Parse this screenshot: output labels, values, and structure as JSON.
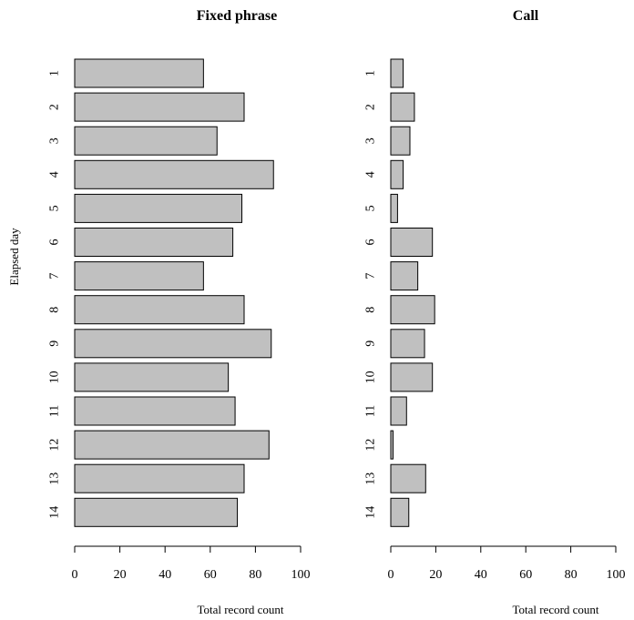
{
  "chart_data": [
    {
      "type": "bar",
      "orientation": "horizontal",
      "title": "Fixed phrase",
      "xlabel": "Total record count",
      "ylabel": "Elapsed day",
      "categories": [
        "1",
        "2",
        "3",
        "4",
        "5",
        "6",
        "7",
        "8",
        "9",
        "10",
        "11",
        "12",
        "13",
        "14"
      ],
      "values": [
        57,
        75,
        63,
        88,
        74,
        70,
        57,
        75,
        87,
        68,
        71,
        86,
        75,
        72
      ],
      "xlim": [
        0,
        100
      ],
      "xticks": [
        "0",
        "20",
        "40",
        "60",
        "80",
        "100"
      ],
      "grid": false,
      "bar_color": "#c0c0c0"
    },
    {
      "type": "bar",
      "orientation": "horizontal",
      "title": "Call",
      "xlabel": "Total record count",
      "ylabel": "",
      "categories": [
        "1",
        "2",
        "3",
        "4",
        "5",
        "6",
        "7",
        "8",
        "9",
        "10",
        "11",
        "12",
        "13",
        "14"
      ],
      "values": [
        5.5,
        10.5,
        8.5,
        5.5,
        3,
        18.5,
        12,
        19.5,
        15,
        18.5,
        7,
        1,
        15.5,
        8
      ],
      "xlim": [
        0,
        100
      ],
      "xticks": [
        "0",
        "20",
        "40",
        "60",
        "80",
        "100"
      ],
      "grid": false,
      "bar_color": "#c0c0c0"
    }
  ]
}
